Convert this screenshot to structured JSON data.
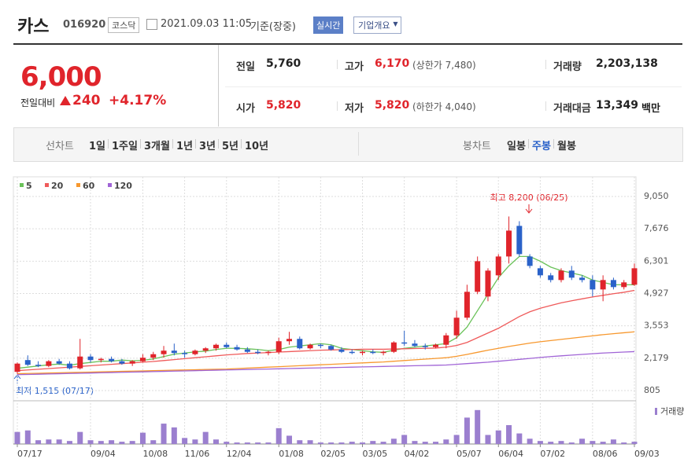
{
  "header": {
    "name": "카스",
    "code": "016920",
    "market": "코스닥",
    "datetime": "2021.09.03 11:05",
    "basis": "기준(장중)",
    "realtime": "실시간",
    "company": "기업개요"
  },
  "quote": {
    "price": "6,000",
    "change_label": "전일대비",
    "change": "240",
    "change_pct": "+4.17%",
    "fields": [
      {
        "label": "전일",
        "value": "5,760"
      },
      {
        "label": "고가",
        "value": "6,170",
        "note": "(상한가 7,480)"
      },
      {
        "label": "거래량",
        "value": "2,203,138"
      },
      {
        "label": "시가",
        "value": "5,820"
      },
      {
        "label": "저가",
        "value": "5,820",
        "note": "(하한가 4,040)"
      },
      {
        "label": "거래대금",
        "value": "13,349",
        "unit": "백만"
      }
    ]
  },
  "tabs": {
    "line_label": "선차트",
    "line_items": [
      "1일",
      "1주일",
      "3개월",
      "1년",
      "3년",
      "5년",
      "10년"
    ],
    "candle_label": "봉차트",
    "candle_items": [
      "일봉",
      "주봉",
      "월봉"
    ],
    "active": 1
  },
  "chart_data": {
    "type": "candlestick",
    "categories": [
      "07/17",
      null,
      null,
      null,
      null,
      null,
      null,
      "09/04",
      null,
      null,
      null,
      null,
      "10/08",
      null,
      null,
      null,
      "11/06",
      null,
      null,
      null,
      "12/04",
      null,
      null,
      null,
      null,
      "01/08",
      null,
      null,
      null,
      "02/05",
      null,
      null,
      null,
      "03/05",
      null,
      null,
      null,
      "04/02",
      null,
      null,
      null,
      null,
      "05/07",
      null,
      null,
      null,
      "06/04",
      null,
      null,
      null,
      "07/02",
      null,
      null,
      null,
      null,
      "08/06",
      null,
      null,
      null,
      "09/03"
    ],
    "open": [
      1600,
      2100,
      1900,
      1850,
      2050,
      1950,
      1750,
      2250,
      2100,
      2150,
      2050,
      1950,
      2050,
      2200,
      2350,
      2500,
      2400,
      2350,
      2500,
      2600,
      2750,
      2650,
      2550,
      2450,
      2400,
      2450,
      2900,
      3000,
      2600,
      2750,
      2700,
      2550,
      2450,
      2400,
      2450,
      2400,
      2450,
      2850,
      2800,
      2700,
      2650,
      2750,
      3150,
      3900,
      5000,
      4800,
      5700,
      6500,
      7800,
      6500,
      6000,
      5700,
      5500,
      5900,
      5600,
      5500,
      5100,
      5500,
      5200,
      5300
    ],
    "high": [
      2000,
      2300,
      2050,
      2100,
      2150,
      2050,
      3000,
      2350,
      2200,
      2250,
      2150,
      2100,
      2350,
      2450,
      2700,
      2800,
      2500,
      2550,
      2650,
      2800,
      2850,
      2750,
      2650,
      2550,
      2500,
      3050,
      3300,
      3100,
      2800,
      2800,
      2750,
      2650,
      2550,
      2500,
      2550,
      2500,
      2900,
      3350,
      2950,
      2800,
      2800,
      3250,
      4200,
      5300,
      6500,
      6000,
      6600,
      8200,
      8000,
      6600,
      6100,
      5800,
      6000,
      6100,
      5700,
      5700,
      5700,
      5600,
      5500,
      6200
    ],
    "low": [
      1515,
      1850,
      1800,
      1800,
      1900,
      1700,
      1700,
      2000,
      2000,
      2000,
      1900,
      1850,
      2000,
      2100,
      2200,
      2300,
      2200,
      2300,
      2400,
      2500,
      2600,
      2500,
      2400,
      2350,
      2300,
      2350,
      2750,
      2550,
      2550,
      2600,
      2500,
      2400,
      2350,
      2300,
      2350,
      2300,
      2400,
      2700,
      2650,
      2550,
      2600,
      2600,
      3000,
      3800,
      4900,
      4600,
      5500,
      6200,
      6500,
      6000,
      5600,
      5400,
      5400,
      5500,
      5400,
      4800,
      4600,
      5100,
      5100,
      5250
    ],
    "close": [
      1950,
      1900,
      1850,
      2050,
      1950,
      1750,
      2250,
      2100,
      2150,
      2050,
      1950,
      2050,
      2200,
      2350,
      2500,
      2400,
      2350,
      2500,
      2600,
      2750,
      2650,
      2550,
      2450,
      2400,
      2450,
      2900,
      3000,
      2600,
      2750,
      2700,
      2550,
      2450,
      2400,
      2450,
      2400,
      2450,
      2850,
      2800,
      2700,
      2650,
      2750,
      3150,
      3900,
      5000,
      6300,
      5900,
      6500,
      7600,
      6600,
      6100,
      5700,
      5500,
      5900,
      5600,
      5500,
      5100,
      5500,
      5200,
      5400,
      6000
    ],
    "up_color": "#e0242b",
    "down_color": "#2a62c9",
    "series": [
      {
        "name": "5",
        "color": "#6ac259",
        "values": [
          1750,
          1800,
          1850,
          1900,
          1930,
          1880,
          1950,
          2000,
          2050,
          2050,
          2100,
          2070,
          2090,
          2150,
          2250,
          2350,
          2400,
          2450,
          2480,
          2550,
          2600,
          2600,
          2580,
          2550,
          2500,
          2550,
          2650,
          2700,
          2750,
          2800,
          2750,
          2600,
          2550,
          2500,
          2450,
          2430,
          2520,
          2600,
          2650,
          2700,
          2750,
          2800,
          3050,
          3500,
          4200,
          4900,
          5600,
          6100,
          6500,
          6500,
          6300,
          6050,
          5900,
          5800,
          5700,
          5500,
          5400,
          5300,
          5300,
          5300
        ]
      },
      {
        "name": "20",
        "color": "#ef5a5a",
        "values": [
          1650,
          1680,
          1710,
          1740,
          1770,
          1800,
          1830,
          1860,
          1890,
          1920,
          1950,
          1980,
          2010,
          2040,
          2080,
          2120,
          2160,
          2200,
          2240,
          2280,
          2320,
          2350,
          2380,
          2400,
          2420,
          2440,
          2460,
          2480,
          2500,
          2520,
          2530,
          2540,
          2550,
          2560,
          2560,
          2560,
          2570,
          2580,
          2590,
          2600,
          2610,
          2650,
          2720,
          2850,
          3050,
          3250,
          3450,
          3700,
          3950,
          4150,
          4300,
          4420,
          4530,
          4620,
          4700,
          4780,
          4850,
          4920,
          4980,
          5060
        ]
      },
      {
        "name": "60",
        "color": "#f7982e",
        "values": [
          1520,
          1530,
          1540,
          1550,
          1560,
          1570,
          1580,
          1590,
          1600,
          1610,
          1620,
          1630,
          1640,
          1650,
          1660,
          1670,
          1680,
          1690,
          1700,
          1710,
          1720,
          1740,
          1760,
          1780,
          1800,
          1820,
          1840,
          1860,
          1880,
          1900,
          1920,
          1940,
          1960,
          1980,
          2000,
          2020,
          2050,
          2080,
          2110,
          2140,
          2170,
          2200,
          2260,
          2340,
          2430,
          2520,
          2600,
          2680,
          2750,
          2820,
          2880,
          2930,
          2980,
          3030,
          3080,
          3130,
          3180,
          3220,
          3260,
          3300
        ]
      },
      {
        "name": "120",
        "color": "#a064d6",
        "values": [
          1480,
          1490,
          1500,
          1510,
          1520,
          1530,
          1540,
          1550,
          1560,
          1570,
          1580,
          1590,
          1600,
          1610,
          1620,
          1630,
          1640,
          1650,
          1660,
          1670,
          1680,
          1690,
          1700,
          1710,
          1720,
          1730,
          1740,
          1750,
          1760,
          1770,
          1780,
          1790,
          1800,
          1810,
          1820,
          1830,
          1840,
          1850,
          1860,
          1870,
          1880,
          1890,
          1920,
          1950,
          1980,
          2010,
          2050,
          2090,
          2130,
          2170,
          2210,
          2250,
          2280,
          2310,
          2340,
          2370,
          2400,
          2420,
          2440,
          2460
        ]
      }
    ],
    "volume": {
      "name": "거래량",
      "color": "#9b7fcf",
      "values": [
        16,
        18,
        5,
        6,
        6,
        4,
        16,
        5,
        4,
        5,
        3,
        4,
        15,
        5,
        27,
        22,
        8,
        6,
        16,
        6,
        3,
        2,
        2,
        2,
        2,
        21,
        11,
        5,
        5,
        2,
        2,
        2,
        3,
        2,
        4,
        3,
        7,
        12,
        4,
        3,
        3,
        6,
        12,
        35,
        45,
        12,
        18,
        25,
        14,
        7,
        4,
        3,
        4,
        2,
        7,
        4,
        3,
        6,
        2,
        3
      ],
      "vlim": [
        0,
        50
      ]
    },
    "ylim": [
      805,
      9050
    ],
    "yticks": [
      805,
      {
        "value": 2179,
        "label": "2,179"
      },
      {
        "value": 3553,
        "label": "3,553"
      },
      {
        "value": 4927,
        "label": "4,927"
      },
      {
        "value": 6301,
        "label": "6,301"
      },
      {
        "value": 7676,
        "label": "7,676"
      },
      {
        "value": 9050,
        "label": "9,050"
      }
    ],
    "grid": true,
    "annotations": {
      "high": "최고 8,200 (06/25)",
      "low": "최저 1,515 (07/17)"
    }
  }
}
